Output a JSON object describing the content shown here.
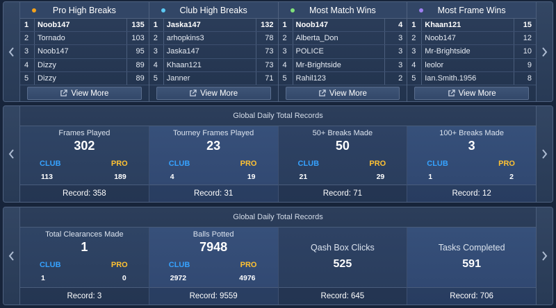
{
  "leaderboards": [
    {
      "title": "Pro High Breaks",
      "dot_color": "#f3a21c",
      "rows": [
        {
          "rank": "1",
          "name": "Noob147",
          "value": "135"
        },
        {
          "rank": "2",
          "name": "Tornado",
          "value": "103"
        },
        {
          "rank": "3",
          "name": "Noob147",
          "value": "95"
        },
        {
          "rank": "4",
          "name": "Dizzy",
          "value": "89"
        },
        {
          "rank": "5",
          "name": "Dizzy",
          "value": "89"
        }
      ],
      "view_more": "View More"
    },
    {
      "title": "Club High Breaks",
      "dot_color": "#5bc8f3",
      "rows": [
        {
          "rank": "1",
          "name": "Jaska147",
          "value": "132"
        },
        {
          "rank": "2",
          "name": "arhopkins3",
          "value": "78"
        },
        {
          "rank": "3",
          "name": "Jaska147",
          "value": "73"
        },
        {
          "rank": "4",
          "name": "Khaan121",
          "value": "73"
        },
        {
          "rank": "5",
          "name": "Janner",
          "value": "71"
        }
      ],
      "view_more": "View More"
    },
    {
      "title": "Most Match Wins",
      "dot_color": "#7fe07a",
      "rows": [
        {
          "rank": "1",
          "name": "Noob147",
          "value": "4"
        },
        {
          "rank": "2",
          "name": "Alberta_Don",
          "value": "3"
        },
        {
          "rank": "3",
          "name": "POLICE",
          "value": "3"
        },
        {
          "rank": "4",
          "name": "Mr-Brightside",
          "value": "3"
        },
        {
          "rank": "5",
          "name": "Rahil123",
          "value": "2"
        }
      ],
      "view_more": "View More"
    },
    {
      "title": "Most Frame Wins",
      "dot_color": "#9d7ff0",
      "rows": [
        {
          "rank": "1",
          "name": "Khaan121",
          "value": "15"
        },
        {
          "rank": "2",
          "name": "Noob147",
          "value": "12"
        },
        {
          "rank": "3",
          "name": "Mr-Brightside",
          "value": "10"
        },
        {
          "rank": "4",
          "name": "leolor",
          "value": "9"
        },
        {
          "rank": "5",
          "name": "Ian.Smith.1956",
          "value": "8"
        }
      ],
      "view_more": "View More"
    }
  ],
  "stats_panel_1": {
    "title": "Global Daily Total Records",
    "items": [
      {
        "label": "Frames Played",
        "total": "302",
        "club_label": "CLUB",
        "pro_label": "PRO",
        "club": "113",
        "pro": "189",
        "record": "Record: 358"
      },
      {
        "label": "Tourney Frames Played",
        "total": "23",
        "club_label": "CLUB",
        "pro_label": "PRO",
        "club": "4",
        "pro": "19",
        "record": "Record: 31"
      },
      {
        "label": "50+ Breaks Made",
        "total": "50",
        "club_label": "CLUB",
        "pro_label": "PRO",
        "club": "21",
        "pro": "29",
        "record": "Record: 71"
      },
      {
        "label": "100+ Breaks Made",
        "total": "3",
        "club_label": "CLUB",
        "pro_label": "PRO",
        "club": "1",
        "pro": "2",
        "record": "Record: 12"
      }
    ]
  },
  "stats_panel_2": {
    "title": "Global Daily Total Records",
    "items": [
      {
        "label": "Total Clearances Made",
        "total": "1",
        "club_label": "CLUB",
        "pro_label": "PRO",
        "club": "1",
        "pro": "0",
        "record": "Record: 3"
      },
      {
        "label": "Balls Potted",
        "total": "7948",
        "club_label": "CLUB",
        "pro_label": "PRO",
        "club": "2972",
        "pro": "4976",
        "record": "Record: 9559"
      },
      {
        "label": "Qash Box Clicks",
        "total": "525",
        "record": "Record: 645"
      },
      {
        "label": "Tasks Completed",
        "total": "591",
        "record": "Record: 706"
      }
    ]
  },
  "colors": {
    "club": "#36a2ff",
    "pro": "#ffc233"
  },
  "icons": {
    "prev": "chevron-left-icon",
    "next": "chevron-right-icon",
    "external": "external-link-icon"
  }
}
